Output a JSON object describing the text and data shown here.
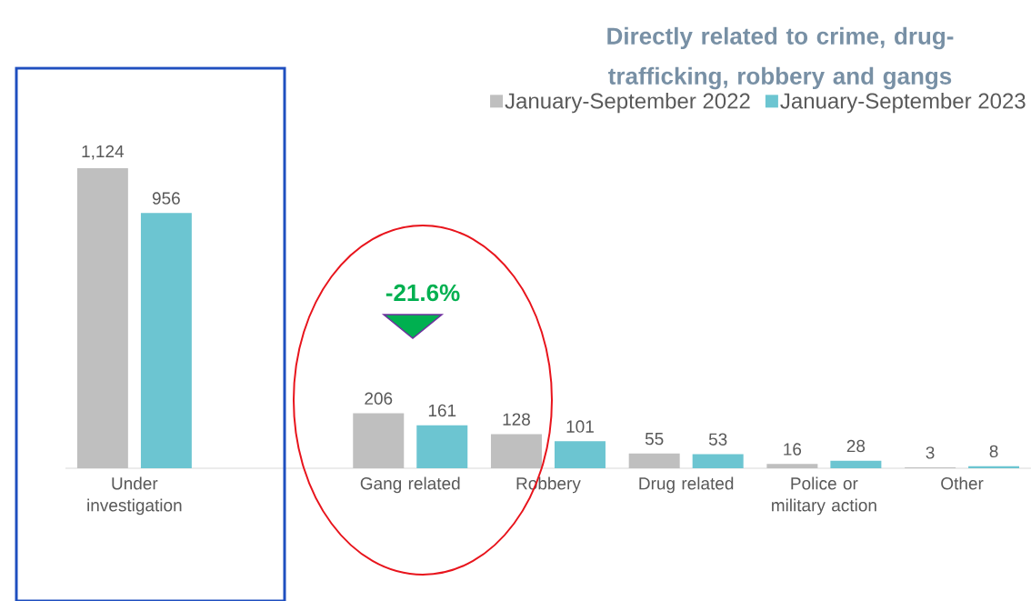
{
  "chart_data": {
    "type": "bar",
    "title": "Directly related to crime, drug-trafficking, robbery and gangs",
    "categories": [
      "Under investigation",
      null,
      "Gang related",
      "Robbery",
      "Drug related",
      "Police or military action",
      "Other"
    ],
    "series": [
      {
        "name": "January-September 2022",
        "color": "#bfbfbf",
        "values": [
          1124,
          null,
          206,
          128,
          55,
          16,
          3
        ],
        "value_labels": [
          "1,124",
          null,
          "206",
          "128",
          "55",
          "16",
          "3"
        ]
      },
      {
        "name": "January-September 2023",
        "color": "#6cc5d1",
        "values": [
          956,
          null,
          161,
          101,
          53,
          28,
          8
        ],
        "value_labels": [
          "956",
          null,
          "161",
          "101",
          "53",
          "28",
          "8"
        ]
      }
    ],
    "annotations": [
      "-21.6%"
    ],
    "legend": "top right",
    "tick_labels": "x"
  }
}
